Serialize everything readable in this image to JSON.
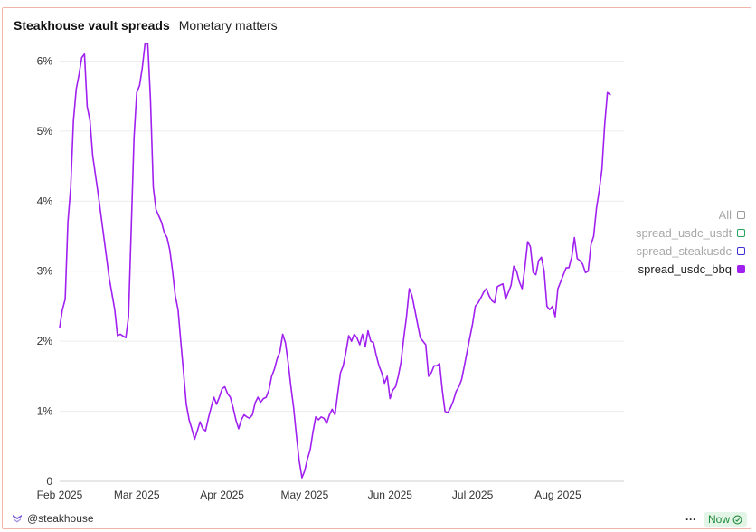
{
  "header": {
    "title": "Steakhouse vault spreads",
    "subtitle": "Monetary matters"
  },
  "legend": {
    "items": [
      {
        "label": "All",
        "color": "#999999",
        "state": "dim"
      },
      {
        "label": "spread_usdc_usdt",
        "color": "#22a45d",
        "state": "dim"
      },
      {
        "label": "spread_steakusdc",
        "color": "#3b2fd9",
        "state": "dim"
      },
      {
        "label": "spread_usdc_bbq",
        "color": "#a020f0",
        "state": "active"
      }
    ]
  },
  "footer": {
    "handle": "@steakhouse",
    "status": "Now",
    "menu": "···",
    "logo_icon": "steakhouse-logo-icon"
  },
  "chart_data": {
    "type": "line",
    "title": "",
    "xlabel": "",
    "ylabel": "",
    "x_tick_labels": [
      "Feb 2025",
      "Mar 2025",
      "Apr 2025",
      "May 2025",
      "Jun 2025",
      "Jul 2025",
      "Aug 2025"
    ],
    "y_tick_labels": [
      "0",
      "1%",
      "2%",
      "3%",
      "4%",
      "5%",
      "6%"
    ],
    "ylim": [
      0,
      6.2
    ],
    "xlim": [
      "2025-02-01",
      "2025-08-25"
    ],
    "grid": "horizontal",
    "legend_position": "right",
    "series": [
      {
        "name": "spread_usdc_bbq",
        "color": "#a020f0",
        "points": [
          [
            "2025-02-01",
            2.2
          ],
          [
            "2025-02-02",
            2.45
          ],
          [
            "2025-02-03",
            2.6
          ],
          [
            "2025-02-04",
            3.7
          ],
          [
            "2025-02-05",
            4.2
          ],
          [
            "2025-02-06",
            5.15
          ],
          [
            "2025-02-07",
            5.6
          ],
          [
            "2025-02-08",
            5.8
          ],
          [
            "2025-02-09",
            6.05
          ],
          [
            "2025-02-10",
            6.1
          ],
          [
            "2025-02-11",
            5.35
          ],
          [
            "2025-02-12",
            5.15
          ],
          [
            "2025-02-13",
            4.65
          ],
          [
            "2025-02-15",
            4.1
          ],
          [
            "2025-02-17",
            3.5
          ],
          [
            "2025-02-19",
            2.9
          ],
          [
            "2025-02-21",
            2.45
          ],
          [
            "2025-02-22",
            2.08
          ],
          [
            "2025-02-23",
            2.1
          ],
          [
            "2025-02-25",
            2.05
          ],
          [
            "2025-02-26",
            2.35
          ],
          [
            "2025-02-28",
            4.9
          ],
          [
            "2025-03-01",
            5.55
          ],
          [
            "2025-03-02",
            5.65
          ],
          [
            "2025-03-03",
            5.9
          ],
          [
            "2025-03-04",
            6.25
          ],
          [
            "2025-03-05",
            6.25
          ],
          [
            "2025-03-06",
            5.45
          ],
          [
            "2025-03-07",
            4.2
          ],
          [
            "2025-03-08",
            3.88
          ],
          [
            "2025-03-10",
            3.7
          ],
          [
            "2025-03-11",
            3.55
          ],
          [
            "2025-03-12",
            3.48
          ],
          [
            "2025-03-13",
            3.3
          ],
          [
            "2025-03-14",
            3.0
          ],
          [
            "2025-03-15",
            2.65
          ],
          [
            "2025-03-16",
            2.45
          ],
          [
            "2025-03-17",
            2.0
          ],
          [
            "2025-03-18",
            1.55
          ],
          [
            "2025-03-19",
            1.1
          ],
          [
            "2025-03-20",
            0.88
          ],
          [
            "2025-03-21",
            0.75
          ],
          [
            "2025-03-22",
            0.6
          ],
          [
            "2025-03-23",
            0.72
          ],
          [
            "2025-03-24",
            0.85
          ],
          [
            "2025-03-25",
            0.75
          ],
          [
            "2025-03-26",
            0.72
          ],
          [
            "2025-03-27",
            0.9
          ],
          [
            "2025-03-28",
            1.05
          ],
          [
            "2025-03-29",
            1.2
          ],
          [
            "2025-03-30",
            1.1
          ],
          [
            "2025-03-31",
            1.2
          ],
          [
            "2025-04-01",
            1.32
          ],
          [
            "2025-04-02",
            1.35
          ],
          [
            "2025-04-03",
            1.25
          ],
          [
            "2025-04-04",
            1.2
          ],
          [
            "2025-04-05",
            1.05
          ],
          [
            "2025-04-06",
            0.88
          ],
          [
            "2025-04-07",
            0.75
          ],
          [
            "2025-04-08",
            0.88
          ],
          [
            "2025-04-09",
            0.95
          ],
          [
            "2025-04-10",
            0.92
          ],
          [
            "2025-04-11",
            0.9
          ],
          [
            "2025-04-12",
            0.95
          ],
          [
            "2025-04-13",
            1.12
          ],
          [
            "2025-04-14",
            1.2
          ],
          [
            "2025-04-15",
            1.13
          ],
          [
            "2025-04-16",
            1.18
          ],
          [
            "2025-04-17",
            1.2
          ],
          [
            "2025-04-18",
            1.3
          ],
          [
            "2025-04-19",
            1.5
          ],
          [
            "2025-04-20",
            1.6
          ],
          [
            "2025-04-21",
            1.75
          ],
          [
            "2025-04-22",
            1.85
          ],
          [
            "2025-04-23",
            2.1
          ],
          [
            "2025-04-24",
            1.98
          ],
          [
            "2025-04-25",
            1.7
          ],
          [
            "2025-04-26",
            1.35
          ],
          [
            "2025-04-27",
            1.05
          ],
          [
            "2025-04-28",
            0.65
          ],
          [
            "2025-04-29",
            0.3
          ],
          [
            "2025-04-30",
            0.05
          ],
          [
            "2025-05-01",
            0.15
          ],
          [
            "2025-05-02",
            0.32
          ],
          [
            "2025-05-03",
            0.45
          ],
          [
            "2025-05-04",
            0.7
          ],
          [
            "2025-05-05",
            0.92
          ],
          [
            "2025-05-06",
            0.88
          ],
          [
            "2025-05-07",
            0.92
          ],
          [
            "2025-05-08",
            0.9
          ],
          [
            "2025-05-09",
            0.83
          ],
          [
            "2025-05-10",
            0.95
          ],
          [
            "2025-05-11",
            1.03
          ],
          [
            "2025-05-12",
            0.95
          ],
          [
            "2025-05-13",
            1.25
          ],
          [
            "2025-05-14",
            1.55
          ],
          [
            "2025-05-15",
            1.65
          ],
          [
            "2025-05-16",
            1.85
          ],
          [
            "2025-05-17",
            2.08
          ],
          [
            "2025-05-18",
            2.0
          ],
          [
            "2025-05-19",
            2.1
          ],
          [
            "2025-05-20",
            2.05
          ],
          [
            "2025-05-21",
            1.95
          ],
          [
            "2025-05-22",
            2.1
          ],
          [
            "2025-05-23",
            1.92
          ],
          [
            "2025-05-24",
            2.15
          ],
          [
            "2025-05-25",
            2.0
          ],
          [
            "2025-05-26",
            1.98
          ],
          [
            "2025-05-27",
            1.8
          ],
          [
            "2025-05-28",
            1.65
          ],
          [
            "2025-05-29",
            1.55
          ],
          [
            "2025-05-30",
            1.4
          ],
          [
            "2025-05-31",
            1.5
          ],
          [
            "2025-06-01",
            1.18
          ],
          [
            "2025-06-02",
            1.3
          ],
          [
            "2025-06-03",
            1.35
          ],
          [
            "2025-06-04",
            1.5
          ],
          [
            "2025-06-05",
            1.7
          ],
          [
            "2025-06-06",
            2.05
          ],
          [
            "2025-06-07",
            2.35
          ],
          [
            "2025-06-08",
            2.75
          ],
          [
            "2025-06-09",
            2.65
          ],
          [
            "2025-06-10",
            2.45
          ],
          [
            "2025-06-11",
            2.25
          ],
          [
            "2025-06-12",
            2.05
          ],
          [
            "2025-06-13",
            2.0
          ],
          [
            "2025-06-14",
            1.95
          ],
          [
            "2025-06-15",
            1.5
          ],
          [
            "2025-06-16",
            1.55
          ],
          [
            "2025-06-17",
            1.65
          ],
          [
            "2025-06-18",
            1.65
          ],
          [
            "2025-06-19",
            1.68
          ],
          [
            "2025-06-20",
            1.3
          ],
          [
            "2025-06-21",
            1.0
          ],
          [
            "2025-06-22",
            0.98
          ],
          [
            "2025-06-23",
            1.05
          ],
          [
            "2025-06-24",
            1.15
          ],
          [
            "2025-06-25",
            1.28
          ],
          [
            "2025-06-26",
            1.35
          ],
          [
            "2025-06-27",
            1.45
          ],
          [
            "2025-06-28",
            1.65
          ],
          [
            "2025-06-29",
            1.85
          ],
          [
            "2025-06-30",
            2.05
          ],
          [
            "2025-07-01",
            2.25
          ],
          [
            "2025-07-02",
            2.5
          ],
          [
            "2025-07-03",
            2.55
          ],
          [
            "2025-07-04",
            2.62
          ],
          [
            "2025-07-05",
            2.7
          ],
          [
            "2025-07-06",
            2.75
          ],
          [
            "2025-07-07",
            2.65
          ],
          [
            "2025-07-08",
            2.58
          ],
          [
            "2025-07-09",
            2.55
          ],
          [
            "2025-07-10",
            2.78
          ],
          [
            "2025-07-11",
            2.8
          ],
          [
            "2025-07-12",
            2.82
          ],
          [
            "2025-07-13",
            2.6
          ],
          [
            "2025-07-14",
            2.7
          ],
          [
            "2025-07-15",
            2.8
          ],
          [
            "2025-07-16",
            3.07
          ],
          [
            "2025-07-17",
            3.0
          ],
          [
            "2025-07-18",
            2.85
          ],
          [
            "2025-07-19",
            2.75
          ],
          [
            "2025-07-20",
            3.05
          ],
          [
            "2025-07-21",
            3.42
          ],
          [
            "2025-07-22",
            3.35
          ],
          [
            "2025-07-23",
            2.98
          ],
          [
            "2025-07-24",
            2.95
          ],
          [
            "2025-07-25",
            3.15
          ],
          [
            "2025-07-26",
            3.2
          ],
          [
            "2025-07-27",
            3.0
          ],
          [
            "2025-07-28",
            2.5
          ],
          [
            "2025-07-29",
            2.45
          ],
          [
            "2025-07-30",
            2.5
          ],
          [
            "2025-07-31",
            2.35
          ],
          [
            "2025-08-01",
            2.75
          ],
          [
            "2025-08-02",
            2.85
          ],
          [
            "2025-08-03",
            2.95
          ],
          [
            "2025-08-04",
            3.05
          ],
          [
            "2025-08-05",
            3.05
          ],
          [
            "2025-08-06",
            3.2
          ],
          [
            "2025-08-07",
            3.48
          ],
          [
            "2025-08-08",
            3.18
          ],
          [
            "2025-08-09",
            3.15
          ],
          [
            "2025-08-10",
            3.1
          ],
          [
            "2025-08-11",
            2.98
          ],
          [
            "2025-08-12",
            3.0
          ],
          [
            "2025-08-13",
            3.38
          ],
          [
            "2025-08-14",
            3.5
          ],
          [
            "2025-08-15",
            3.9
          ],
          [
            "2025-08-16",
            4.15
          ],
          [
            "2025-08-17",
            4.45
          ],
          [
            "2025-08-18",
            5.1
          ],
          [
            "2025-08-19",
            5.55
          ],
          [
            "2025-08-20",
            5.52
          ]
        ]
      }
    ]
  }
}
